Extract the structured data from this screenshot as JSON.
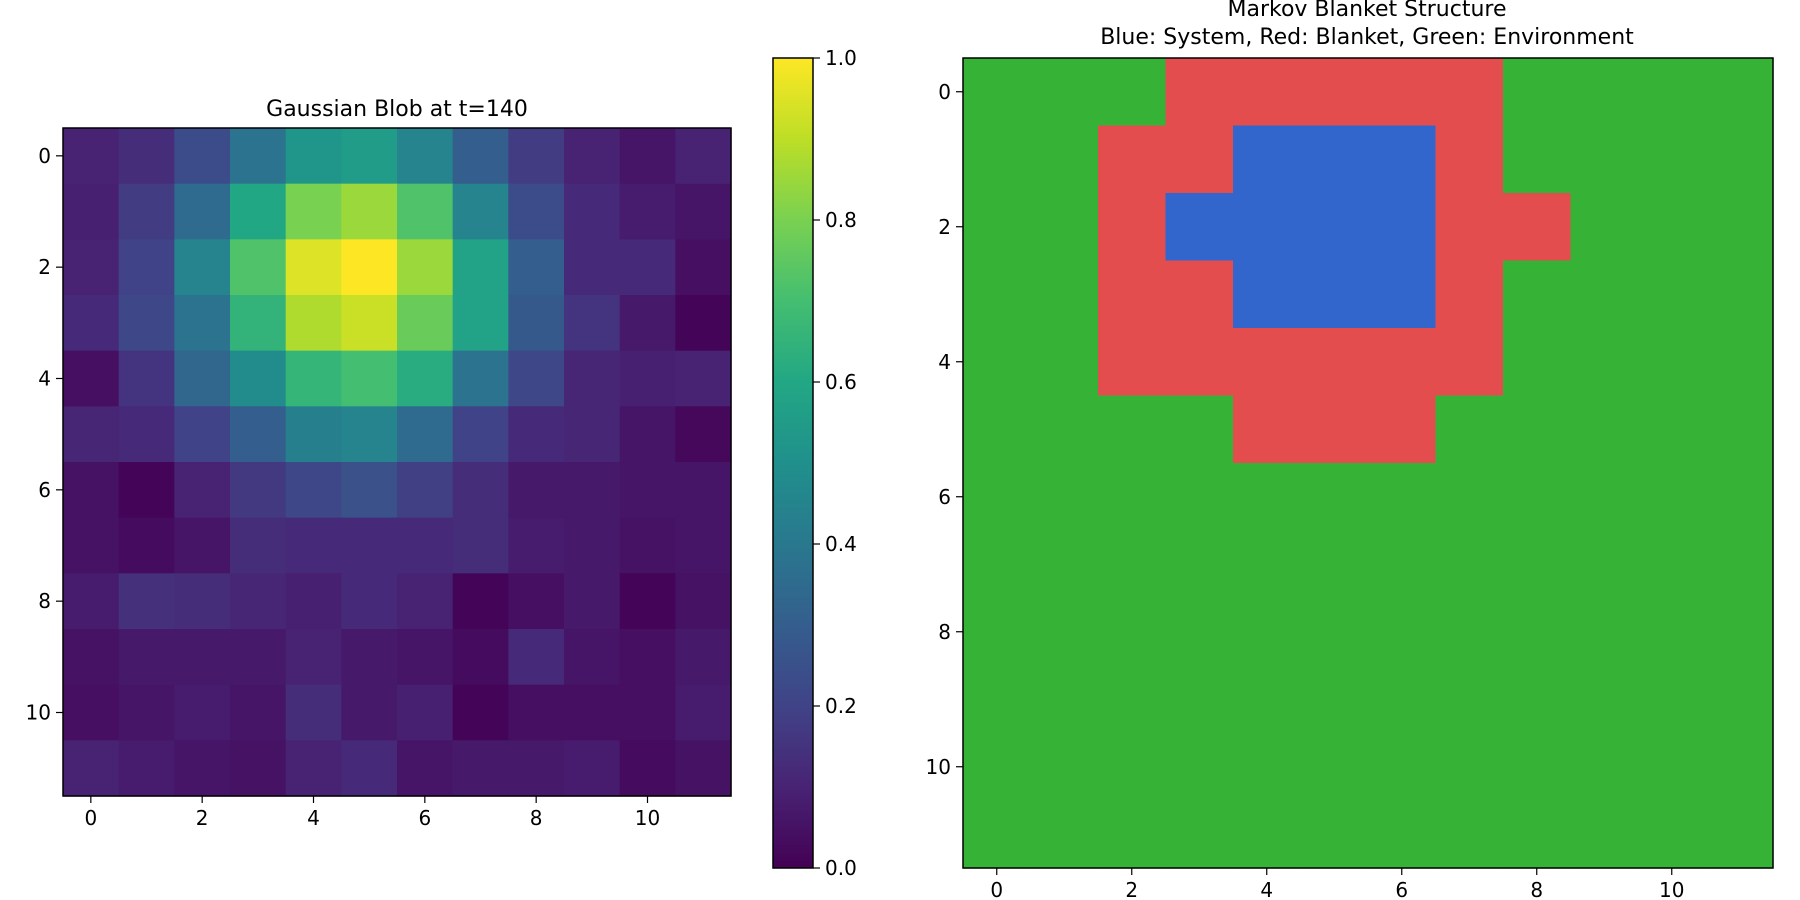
{
  "chart_data": [
    {
      "type": "heatmap",
      "title": "Gaussian Blob at t=140",
      "xlabel": "",
      "ylabel": "",
      "colormap": "viridis",
      "vmin": 0.0,
      "vmax": 1.0,
      "xticks": [
        0,
        2,
        4,
        6,
        8,
        10
      ],
      "yticks": [
        0,
        2,
        4,
        6,
        8,
        10
      ],
      "colorbar_ticks": [
        "0.0",
        "0.2",
        "0.4",
        "0.6",
        "0.8",
        "1.0"
      ],
      "values": [
        [
          0.1,
          0.13,
          0.23,
          0.38,
          0.52,
          0.55,
          0.45,
          0.3,
          0.18,
          0.1,
          0.06,
          0.1
        ],
        [
          0.09,
          0.18,
          0.35,
          0.6,
          0.8,
          0.85,
          0.72,
          0.45,
          0.23,
          0.12,
          0.08,
          0.06
        ],
        [
          0.1,
          0.2,
          0.45,
          0.72,
          0.95,
          1.0,
          0.85,
          0.58,
          0.3,
          0.12,
          0.12,
          0.04
        ],
        [
          0.12,
          0.22,
          0.38,
          0.65,
          0.88,
          0.92,
          0.77,
          0.58,
          0.28,
          0.15,
          0.07,
          0.01
        ],
        [
          0.04,
          0.15,
          0.33,
          0.48,
          0.66,
          0.7,
          0.62,
          0.38,
          0.22,
          0.11,
          0.09,
          0.1
        ],
        [
          0.11,
          0.12,
          0.2,
          0.3,
          0.43,
          0.45,
          0.35,
          0.2,
          0.12,
          0.11,
          0.06,
          0.02
        ],
        [
          0.05,
          0.01,
          0.1,
          0.17,
          0.22,
          0.25,
          0.19,
          0.13,
          0.07,
          0.07,
          0.06,
          0.06
        ],
        [
          0.05,
          0.03,
          0.06,
          0.13,
          0.12,
          0.12,
          0.12,
          0.13,
          0.08,
          0.07,
          0.05,
          0.06
        ],
        [
          0.08,
          0.14,
          0.13,
          0.11,
          0.09,
          0.12,
          0.1,
          0.01,
          0.04,
          0.07,
          0.01,
          0.05
        ],
        [
          0.05,
          0.07,
          0.07,
          0.07,
          0.1,
          0.07,
          0.06,
          0.03,
          0.12,
          0.06,
          0.04,
          0.07
        ],
        [
          0.04,
          0.06,
          0.08,
          0.06,
          0.13,
          0.07,
          0.09,
          0.01,
          0.04,
          0.04,
          0.04,
          0.08
        ],
        [
          0.1,
          0.08,
          0.06,
          0.05,
          0.1,
          0.12,
          0.06,
          0.07,
          0.07,
          0.08,
          0.03,
          0.05
        ]
      ]
    },
    {
      "type": "heatmap",
      "title": "Markov Blanket Structure",
      "subtitle": "Blue: System, Red: Blanket, Green: Environment",
      "xlabel": "",
      "ylabel": "",
      "xticks": [
        0,
        2,
        4,
        6,
        8,
        10
      ],
      "yticks": [
        0,
        2,
        4,
        6,
        8,
        10
      ],
      "category_colors": {
        "S": "#3366cc",
        "B": "#e34d4d",
        "E": "#36b336"
      },
      "grid": [
        "EEEBBBBBEEEE",
        "EEBBSSSBEEEE",
        "EEBSSSSBBEEE",
        "EEBBSSSBEEEE",
        "EEBBBBBBEEEE",
        "EEEEBBBEEEEE",
        "EEEEEEEEEEEE",
        "EEEEEEEEEEEE",
        "EEEEEEEEEEEE",
        "EEEEEEEEEEEE",
        "EEEEEEEEEEEE",
        "EEEEEEEEEEEE"
      ]
    }
  ]
}
